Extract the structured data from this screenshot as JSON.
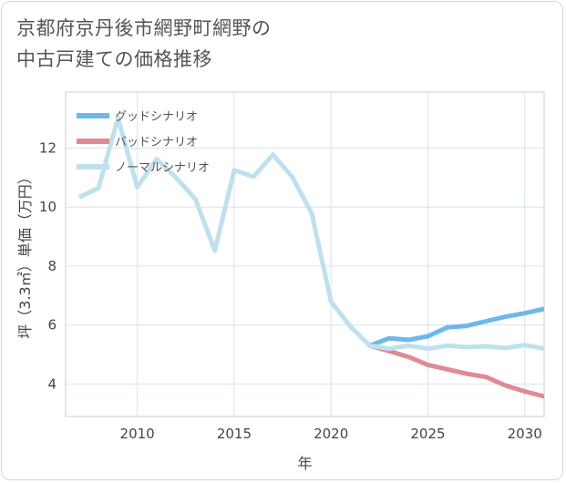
{
  "title": {
    "line1": "京都府京丹後市網野町網野の",
    "line2": "中古戸建ての価格推移"
  },
  "chart_data": {
    "type": "line",
    "xlabel": "年",
    "ylabel": "坪（3.3㎡）単価（万円）",
    "xlim": [
      2006.3,
      2031
    ],
    "ylim": [
      2.9,
      13.9
    ],
    "xticks": [
      2010,
      2015,
      2020,
      2025,
      2030
    ],
    "yticks": [
      4,
      6,
      8,
      10,
      12
    ],
    "grid": true,
    "legend_position": "top-left",
    "series": [
      {
        "name": "グッドシナリオ",
        "color": "#6cb8ea",
        "x": [
          2022,
          2023,
          2024,
          2025,
          2026,
          2027,
          2028,
          2029,
          2030,
          2031
        ],
        "y": [
          5.3,
          5.55,
          5.5,
          5.62,
          5.92,
          5.97,
          6.13,
          6.28,
          6.4,
          6.55
        ]
      },
      {
        "name": "バッドシナリオ",
        "color": "#e08a93",
        "x": [
          2022,
          2023,
          2024,
          2025,
          2026,
          2027,
          2028,
          2029,
          2030,
          2031
        ],
        "y": [
          5.3,
          5.12,
          4.92,
          4.65,
          4.5,
          4.35,
          4.24,
          3.95,
          3.75,
          3.58
        ]
      },
      {
        "name": "ノーマルシナリオ",
        "color": "#bfe0ee",
        "x": [
          2007,
          2008,
          2009,
          2010,
          2011,
          2012,
          2013,
          2014,
          2015,
          2016,
          2017,
          2018,
          2019,
          2020,
          2021,
          2022,
          2023,
          2024,
          2025,
          2026,
          2027,
          2028,
          2029,
          2030,
          2031
        ],
        "y": [
          10.33,
          10.65,
          13.02,
          10.68,
          11.63,
          11.0,
          10.27,
          8.52,
          11.25,
          11.03,
          11.78,
          11.02,
          9.8,
          6.8,
          5.95,
          5.3,
          5.2,
          5.3,
          5.2,
          5.3,
          5.25,
          5.28,
          5.22,
          5.32,
          5.2
        ]
      }
    ]
  }
}
